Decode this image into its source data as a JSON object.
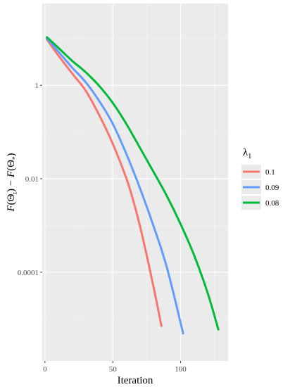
{
  "chart_data": {
    "type": "line",
    "xlabel": "Iteration",
    "ylabel": "F(Θ_t) − F(Θ_*)",
    "y_scale": "log10",
    "xlim": [
      -2,
      135
    ],
    "ylim_log10": [
      -5.9,
      1.75
    ],
    "x_ticks": [
      0,
      50,
      100
    ],
    "x_tick_labels": [
      "0",
      "50",
      "100"
    ],
    "y_ticks": [
      1,
      0.01,
      0.0001
    ],
    "y_tick_labels": [
      "1",
      "0.01",
      "0.0001"
    ],
    "grid": true,
    "legend_position": "right",
    "legend_title": "λ1",
    "series": [
      {
        "name": "0.1",
        "color": "#F8766D",
        "x": [
          1,
          10,
          20,
          30,
          40,
          50,
          60,
          65,
          70,
          75,
          80,
          86
        ],
        "y": [
          10.0,
          4.3,
          1.8,
          0.77,
          0.23,
          0.056,
          0.0102,
          0.0035,
          0.00098,
          0.00023,
          4.9e-05,
          6.8e-06
        ]
      },
      {
        "name": "0.09",
        "color": "#619CFF",
        "x": [
          1,
          10,
          20,
          30,
          40,
          50,
          60,
          70,
          80,
          90,
          102
        ],
        "y": [
          10.5,
          5.2,
          2.4,
          1.17,
          0.46,
          0.15,
          0.034,
          0.0063,
          0.00098,
          0.000123,
          4.7e-06
        ]
      },
      {
        "name": "0.08",
        "color": "#00BA38",
        "x": [
          1,
          10,
          20,
          30,
          40,
          50,
          60,
          70,
          80,
          90,
          100,
          110,
          120,
          128
        ],
        "y": [
          11.0,
          6.3,
          3.35,
          1.91,
          0.97,
          0.42,
          0.149,
          0.046,
          0.0141,
          0.0042,
          0.00107,
          0.000229,
          3.55e-05,
          5.7e-06
        ]
      }
    ]
  }
}
